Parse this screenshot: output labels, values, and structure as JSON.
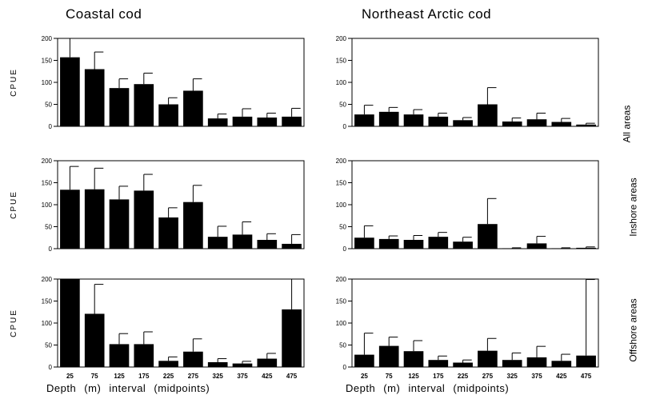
{
  "column_titles": [
    "Coastal cod",
    "Northeast Arctic cod"
  ],
  "row_labels": [
    "All areas",
    "Inshore areas",
    "Offshore areas"
  ],
  "xlabel": "Depth (m) interval (midpoints)",
  "chart_data": [
    {
      "type": "bar",
      "panel": "Coastal cod - All areas",
      "ylabel": "CPUE",
      "ylim": [
        0,
        200
      ],
      "categories": [
        "25",
        "75",
        "125",
        "175",
        "225",
        "275",
        "325",
        "375",
        "425",
        "475"
      ],
      "values": [
        157,
        130,
        87,
        96,
        50,
        81,
        18,
        22,
        20,
        22
      ],
      "error_upper": [
        200,
        169,
        108,
        121,
        65,
        108,
        28,
        40,
        30,
        41
      ]
    },
    {
      "type": "bar",
      "panel": "Northeast Arctic cod - All areas",
      "ylim": [
        0,
        200
      ],
      "categories": [
        "25",
        "75",
        "125",
        "175",
        "225",
        "275",
        "325",
        "375",
        "425",
        "475"
      ],
      "values": [
        27,
        33,
        27,
        22,
        14,
        50,
        11,
        16,
        10,
        4
      ],
      "error_upper": [
        48,
        43,
        38,
        30,
        20,
        88,
        19,
        30,
        18,
        7
      ]
    },
    {
      "type": "bar",
      "panel": "Coastal cod - Inshore areas",
      "ylabel": "CPUE",
      "ylim": [
        0,
        200
      ],
      "categories": [
        "25",
        "75",
        "125",
        "175",
        "225",
        "275",
        "325",
        "375",
        "425",
        "475"
      ],
      "values": [
        134,
        135,
        112,
        132,
        71,
        106,
        27,
        32,
        20,
        11
      ],
      "error_upper": [
        187,
        183,
        142,
        169,
        93,
        144,
        51,
        61,
        34,
        32
      ]
    },
    {
      "type": "bar",
      "panel": "Northeast Arctic cod - Inshore areas",
      "ylim": [
        0,
        200
      ],
      "categories": [
        "25",
        "75",
        "125",
        "175",
        "225",
        "275",
        "325",
        "375",
        "425",
        "475"
      ],
      "values": [
        25,
        22,
        20,
        27,
        16,
        56,
        1,
        12,
        1,
        2
      ],
      "error_upper": [
        52,
        29,
        30,
        37,
        26,
        114,
        2,
        28,
        2,
        4
      ]
    },
    {
      "type": "bar",
      "panel": "Coastal cod - Offshore areas",
      "ylabel": "CPUE",
      "ylim": [
        0,
        200
      ],
      "categories": [
        "25",
        "75",
        "125",
        "175",
        "225",
        "275",
        "325",
        "375",
        "425",
        "475"
      ],
      "values": [
        200,
        121,
        52,
        52,
        14,
        35,
        11,
        8,
        19,
        131
      ],
      "error_upper": [
        200,
        188,
        76,
        80,
        23,
        64,
        19,
        13,
        31,
        200
      ]
    },
    {
      "type": "bar",
      "panel": "Northeast Arctic cod - Offshore areas",
      "ylim": [
        0,
        200
      ],
      "categories": [
        "25",
        "75",
        "125",
        "175",
        "225",
        "275",
        "325",
        "375",
        "425",
        "475"
      ],
      "values": [
        28,
        48,
        36,
        16,
        10,
        37,
        16,
        22,
        14,
        26
      ],
      "error_upper": [
        77,
        68,
        60,
        25,
        16,
        65,
        32,
        47,
        29,
        199
      ]
    }
  ]
}
